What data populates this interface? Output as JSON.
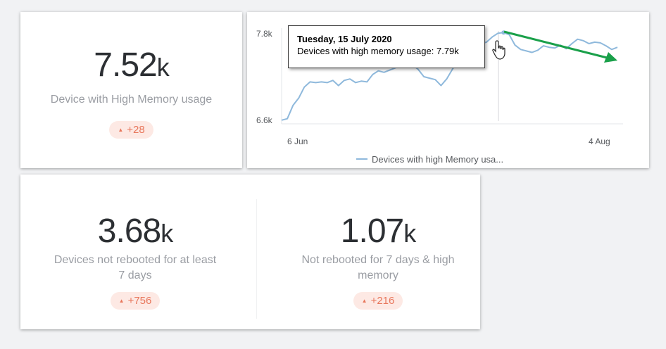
{
  "kpi_high_memory": {
    "value": "7.52",
    "unit": "k",
    "label": "Device with High Memory usage",
    "delta": "+28"
  },
  "kpi_not_rebooted": {
    "value": "3.68",
    "unit": "k",
    "label_line1": "Devices not rebooted for at least",
    "label_line2": "7 days",
    "delta": "+756"
  },
  "kpi_not_rebooted_high_memory": {
    "value": "1.07",
    "unit": "k",
    "label_line1": "Not rebooted for 7 days & high",
    "label_line2": "memory",
    "delta": "+216"
  },
  "tooltip": {
    "title": "Tuesday, 15 July 2020",
    "line": "Devices with high memory usage: 7.79k"
  },
  "colors": {
    "series": "#8fb9dc",
    "badge_bg": "#fde9e4",
    "badge_text": "#e8775c",
    "trend_arrow": "#1aa04a"
  },
  "chart_data": {
    "type": "line",
    "x_tick_labels": [
      "6 Jun",
      "4 Aug"
    ],
    "y_tick_labels": [
      "7.8k",
      "6.6k"
    ],
    "ylim": [
      6.55,
      7.85
    ],
    "legend": "bottom",
    "series": [
      {
        "name": "Devices with high Memory usa...",
        "x": [
          "2020-06-06",
          "2020-06-07",
          "2020-06-08",
          "2020-06-09",
          "2020-06-10",
          "2020-06-11",
          "2020-06-12",
          "2020-06-13",
          "2020-06-14",
          "2020-06-15",
          "2020-06-16",
          "2020-06-17",
          "2020-06-18",
          "2020-06-19",
          "2020-06-20",
          "2020-06-21",
          "2020-06-22",
          "2020-06-23",
          "2020-06-24",
          "2020-06-25",
          "2020-06-26",
          "2020-06-27",
          "2020-06-28",
          "2020-06-29",
          "2020-06-30",
          "2020-07-01",
          "2020-07-02",
          "2020-07-03",
          "2020-07-04",
          "2020-07-05",
          "2020-07-06",
          "2020-07-07",
          "2020-07-08",
          "2020-07-09",
          "2020-07-10",
          "2020-07-11",
          "2020-07-12",
          "2020-07-13",
          "2020-07-14",
          "2020-07-15",
          "2020-07-16",
          "2020-07-17",
          "2020-07-18",
          "2020-07-19",
          "2020-07-20",
          "2020-07-21",
          "2020-07-22",
          "2020-07-23",
          "2020-07-24",
          "2020-07-25",
          "2020-07-26",
          "2020-07-27",
          "2020-07-28",
          "2020-07-29",
          "2020-07-30",
          "2020-07-31",
          "2020-08-01",
          "2020-08-02",
          "2020-08-03",
          "2020-08-04"
        ],
        "values": [
          6.6,
          6.62,
          6.8,
          6.9,
          7.05,
          7.12,
          7.11,
          7.12,
          7.11,
          7.14,
          7.07,
          7.14,
          7.16,
          7.11,
          7.13,
          7.12,
          7.22,
          7.27,
          7.25,
          7.28,
          7.31,
          7.36,
          7.39,
          7.35,
          7.29,
          7.19,
          7.17,
          7.15,
          7.07,
          7.16,
          7.29,
          7.4,
          7.52,
          7.62,
          7.66,
          7.64,
          7.66,
          7.73,
          7.78,
          7.79,
          7.76,
          7.62,
          7.56,
          7.54,
          7.52,
          7.55,
          7.61,
          7.59,
          7.58,
          7.62,
          7.57,
          7.64,
          7.7,
          7.68,
          7.64,
          7.66,
          7.65,
          7.61,
          7.56,
          7.59
        ]
      }
    ],
    "highlight": {
      "x": "2020-07-15",
      "value": 7.79
    }
  }
}
